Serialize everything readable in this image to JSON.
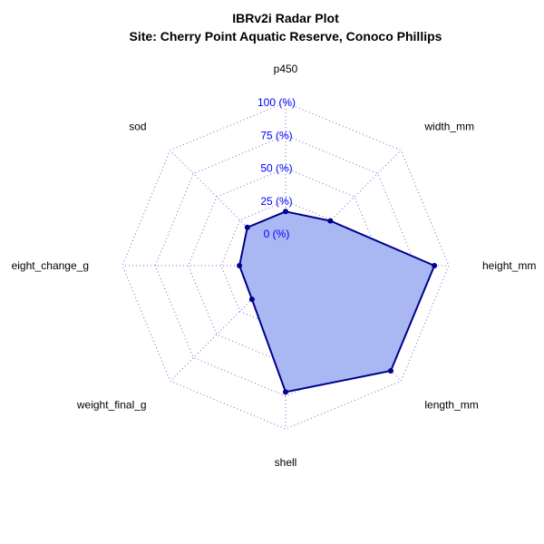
{
  "chart_data": {
    "type": "radar",
    "title": "IBRv2i Radar Plot",
    "subtitle": "Site: Cherry Point Aquatic Reserve, Conoco Phillips",
    "axes": [
      "p450",
      "width_mm",
      "height_mm",
      "length_mm",
      "shell",
      "weight_final_g",
      "eight_change_g",
      "sod"
    ],
    "values": [
      17,
      24,
      89,
      89,
      72,
      12,
      11,
      17
    ],
    "ylim": [
      0,
      100
    ],
    "tick_values": [
      0,
      25,
      50,
      75,
      100
    ],
    "tick_labels": [
      "0 (%)",
      "25 (%)",
      "50 (%)",
      "75 (%)",
      "100 (%)"
    ],
    "grid": true,
    "colors": {
      "fill": "#a9b7f2",
      "line": "#00008b",
      "point": "#00008b",
      "grid": "#6b6bd6",
      "tick_text": "#0000ff"
    }
  }
}
